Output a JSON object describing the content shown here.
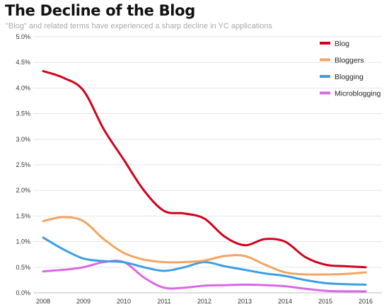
{
  "title": "The Decline of the Blog",
  "subtitle": "\"Blog\" and related terms have experienced  a sharp decline in YC applications",
  "chart_data": {
    "type": "line",
    "title": "The Decline of the Blog",
    "subtitle": "\"Blog\" and related terms have experienced  a sharp decline in YC applications",
    "xlabel": "",
    "ylabel": "",
    "x": [
      2008,
      2008.5,
      2009,
      2009.5,
      2010,
      2010.5,
      2011,
      2011.5,
      2012,
      2012.5,
      2013,
      2013.5,
      2014,
      2014.5,
      2015,
      2015.5,
      2016
    ],
    "x_ticks": [
      "2008",
      "2009",
      "2010",
      "2011",
      "2012",
      "2013",
      "2014",
      "2015",
      "2016"
    ],
    "y_ticks": [
      "0.0%",
      "0.5%",
      "1.0%",
      "1.5%",
      "2.0%",
      "2.5%",
      "3.0%",
      "3.5%",
      "4.0%",
      "4.5%",
      "5.0%"
    ],
    "xlim": [
      2008,
      2016
    ],
    "ylim": [
      0,
      5
    ],
    "grid": "horizontal",
    "legend_position": "top-right",
    "series": [
      {
        "name": "Blog",
        "color": "#d0021b",
        "values": [
          4.33,
          4.2,
          3.95,
          3.2,
          2.6,
          2.0,
          1.6,
          1.55,
          1.45,
          1.1,
          0.93,
          1.05,
          1.0,
          0.7,
          0.55,
          0.52,
          0.5
        ]
      },
      {
        "name": "Bloggers",
        "color": "#f4a460",
        "values": [
          1.4,
          1.48,
          1.4,
          1.05,
          0.78,
          0.65,
          0.6,
          0.6,
          0.63,
          0.72,
          0.72,
          0.55,
          0.4,
          0.36,
          0.36,
          0.37,
          0.4
        ]
      },
      {
        "name": "Blogging",
        "color": "#3c9ee5",
        "values": [
          1.08,
          0.85,
          0.67,
          0.62,
          0.6,
          0.5,
          0.43,
          0.5,
          0.6,
          0.52,
          0.45,
          0.38,
          0.33,
          0.25,
          0.19,
          0.17,
          0.16
        ]
      },
      {
        "name": "Microblogging",
        "color": "#d967e8",
        "values": [
          0.42,
          0.45,
          0.5,
          0.6,
          0.6,
          0.3,
          0.1,
          0.1,
          0.14,
          0.15,
          0.16,
          0.15,
          0.13,
          0.08,
          0.04,
          0.03,
          0.03
        ]
      }
    ]
  }
}
